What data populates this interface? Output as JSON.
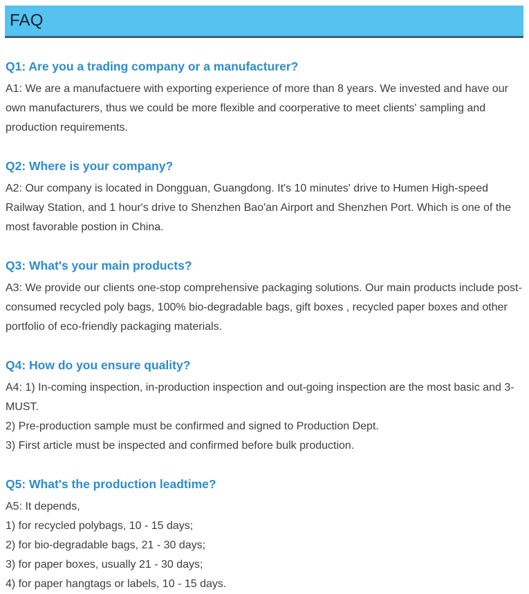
{
  "header": {
    "title": "FAQ"
  },
  "colors": {
    "header_bg": "#55c2f0",
    "header_border": "#3e5c75",
    "question_blue": "#2e8ccc",
    "body_text": "#3d3d3d"
  },
  "faq": {
    "items": [
      {
        "question": "Q1: Are you a trading company or a manufacturer?",
        "lines": [
          "A1: We are a manufactuere with exporting experience of more than 8 years. We invested and have our own manufacturers, thus we could be more flexible and coorperative to meet clients' sampling and production requirements."
        ]
      },
      {
        "question": "Q2: Where is your company?",
        "lines": [
          "A2: Our company is located in Dongguan, Guangdong. It's 10 minutes' drive to Humen High-speed Railway Station, and 1 hour's drive to Shenzhen Bao'an Airport and Shenzhen Port. Which is one of the most favorable postion in China."
        ]
      },
      {
        "question": "Q3: What's your main products?",
        "lines": [
          "A3: We provide our clients one-stop comprehensive packaging solutions. Our main products include post-consumed recycled poly bags, 100% bio-degradable bags, gift boxes , recycled paper boxes and other portfolio of eco-friendly packaging materials."
        ]
      },
      {
        "question": "Q4: How do you ensure quality?",
        "lines": [
          "A4: 1) In-coming inspection, in-production inspection and out-going inspection are the most basic and 3-MUST.",
          "2) Pre-production sample must be confirmed and signed to Production Dept.",
          "3) First article must be inspected and confirmed before bulk production."
        ]
      },
      {
        "question": "Q5: What's the production leadtime?",
        "lines": [
          "A5: It depends,",
          "1) for recycled polybags, 10 - 15 days;",
          "2) for bio-degradable bags, 21 - 30 days;",
          "3) for paper boxes, usually 21 - 30 days;",
          "4) for paper hangtags or labels, 10 - 15 days."
        ]
      }
    ]
  }
}
